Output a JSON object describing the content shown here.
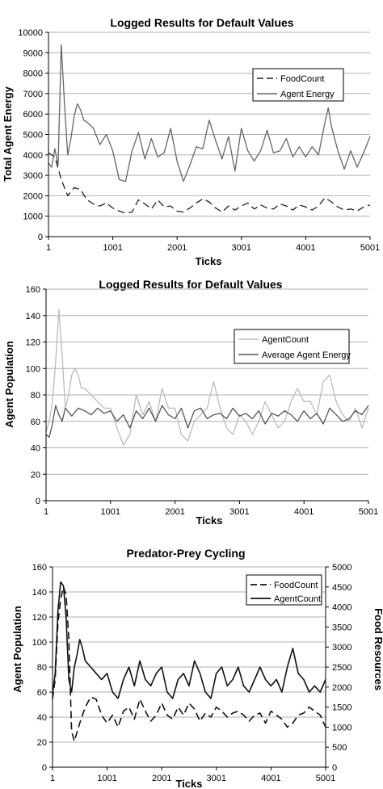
{
  "chart_data": [
    {
      "type": "line",
      "title": "Logged Results for Default Values",
      "xlabel": "Ticks",
      "ylabel": "Total Agent Energy",
      "x_ticks": [
        "1",
        "1001",
        "2001",
        "3001",
        "4001",
        "5001"
      ],
      "xlim": [
        1,
        5001
      ],
      "ylim": [
        0,
        10000
      ],
      "y_ticks": [
        "0",
        "1000",
        "2000",
        "3000",
        "4000",
        "5000",
        "6000",
        "7000",
        "8000",
        "9000",
        "10000"
      ],
      "grid": true,
      "legend_position": "top-right",
      "colors": {
        "FoodCount": "#222222",
        "Agent Energy": "#666666"
      },
      "series": [
        {
          "name": "FoodCount",
          "style": "dashed",
          "x": [
            1,
            100,
            200,
            300,
            400,
            500,
            600,
            700,
            800,
            900,
            1000,
            1100,
            1200,
            1300,
            1400,
            1500,
            1600,
            1700,
            1800,
            1900,
            2000,
            2100,
            2200,
            2300,
            2400,
            2500,
            2600,
            2700,
            2800,
            2900,
            3000,
            3100,
            3200,
            3300,
            3400,
            3500,
            3600,
            3700,
            3800,
            3900,
            4000,
            4100,
            4200,
            4300,
            4400,
            4500,
            4600,
            4700,
            4800,
            4900,
            5001
          ],
          "y": [
            4100,
            3900,
            2800,
            2000,
            2400,
            2300,
            1800,
            1600,
            1500,
            1650,
            1400,
            1250,
            1150,
            1200,
            1800,
            1600,
            1350,
            1800,
            1450,
            1500,
            1250,
            1200,
            1400,
            1650,
            1850,
            1700,
            1400,
            1200,
            1500,
            1300,
            1500,
            1650,
            1350,
            1550,
            1400,
            1350,
            1600,
            1500,
            1300,
            1550,
            1450,
            1300,
            1500,
            1900,
            1700,
            1450,
            1300,
            1350,
            1250,
            1450,
            1550
          ]
        },
        {
          "name": "Agent Energy",
          "style": "solid",
          "x": [
            1,
            50,
            100,
            150,
            200,
            250,
            300,
            350,
            400,
            450,
            500,
            550,
            600,
            700,
            800,
            900,
            1000,
            1100,
            1200,
            1300,
            1400,
            1500,
            1600,
            1700,
            1800,
            1900,
            2000,
            2100,
            2200,
            2300,
            2400,
            2500,
            2600,
            2700,
            2800,
            2900,
            3000,
            3100,
            3200,
            3300,
            3400,
            3500,
            3600,
            3700,
            3800,
            3900,
            4000,
            4100,
            4200,
            4300,
            4350,
            4400,
            4500,
            4600,
            4700,
            4800,
            4900,
            5001
          ],
          "y": [
            3600,
            3400,
            4300,
            3500,
            9400,
            6500,
            4000,
            4800,
            5900,
            6500,
            6200,
            5700,
            5600,
            5300,
            4500,
            5000,
            4200,
            2800,
            2700,
            4200,
            5100,
            3800,
            4800,
            3900,
            4100,
            5300,
            3700,
            2700,
            3500,
            4400,
            4300,
            5700,
            4700,
            3800,
            4900,
            3200,
            5300,
            4200,
            3700,
            4200,
            5200,
            4100,
            4200,
            4800,
            3900,
            4400,
            3900,
            4400,
            4000,
            5600,
            6300,
            5400,
            4200,
            3300,
            4200,
            3400,
            4100,
            4900
          ]
        }
      ]
    },
    {
      "type": "line",
      "title": "Logged Results for Default Values",
      "xlabel": "Ticks",
      "ylabel": "Agent Population",
      "x_ticks": [
        "1",
        "1001",
        "2001",
        "3001",
        "4001",
        "5001"
      ],
      "xlim": [
        1,
        5001
      ],
      "ylim": [
        0,
        160
      ],
      "y_ticks": [
        "0",
        "20",
        "40",
        "60",
        "80",
        "100",
        "120",
        "140",
        "160"
      ],
      "grid": true,
      "legend_position": "top-right",
      "colors": {
        "AgentCount": "#bbbbbb",
        "Average Agent Energy": "#555555"
      },
      "series": [
        {
          "name": "AgentCount",
          "style": "solid",
          "x": [
            1,
            50,
            100,
            150,
            200,
            250,
            300,
            350,
            400,
            450,
            500,
            550,
            600,
            700,
            800,
            900,
            1000,
            1100,
            1200,
            1300,
            1400,
            1500,
            1600,
            1700,
            1800,
            1900,
            2000,
            2100,
            2200,
            2300,
            2400,
            2500,
            2600,
            2700,
            2800,
            2900,
            3000,
            3100,
            3200,
            3300,
            3400,
            3500,
            3600,
            3700,
            3800,
            3900,
            4000,
            4100,
            4200,
            4300,
            4400,
            4500,
            4600,
            4700,
            4800,
            4900,
            5001
          ],
          "y": [
            52,
            60,
            75,
            105,
            145,
            110,
            70,
            80,
            95,
            100,
            95,
            85,
            85,
            80,
            75,
            70,
            70,
            55,
            42,
            50,
            80,
            65,
            75,
            60,
            85,
            70,
            70,
            50,
            45,
            60,
            65,
            70,
            90,
            70,
            55,
            50,
            65,
            60,
            50,
            60,
            75,
            65,
            55,
            60,
            75,
            85,
            75,
            75,
            65,
            90,
            95,
            75,
            65,
            60,
            70,
            55,
            70
          ]
        },
        {
          "name": "Average Agent Energy",
          "style": "solid",
          "x": [
            1,
            50,
            100,
            150,
            200,
            250,
            300,
            400,
            500,
            600,
            700,
            800,
            900,
            1000,
            1100,
            1200,
            1300,
            1400,
            1500,
            1600,
            1700,
            1800,
            1900,
            2000,
            2100,
            2200,
            2300,
            2400,
            2500,
            2600,
            2700,
            2800,
            2900,
            3000,
            3100,
            3200,
            3300,
            3400,
            3500,
            3600,
            3700,
            3800,
            3900,
            4000,
            4100,
            4200,
            4300,
            4400,
            4500,
            4600,
            4700,
            4800,
            4900,
            5001
          ],
          "y": [
            50,
            48,
            58,
            72,
            65,
            60,
            70,
            64,
            70,
            68,
            65,
            70,
            66,
            68,
            60,
            65,
            55,
            68,
            62,
            70,
            60,
            72,
            65,
            62,
            70,
            55,
            68,
            70,
            62,
            65,
            66,
            62,
            70,
            64,
            66,
            62,
            68,
            58,
            66,
            64,
            68,
            65,
            60,
            68,
            62,
            66,
            58,
            70,
            65,
            60,
            62,
            68,
            65,
            72
          ]
        }
      ]
    },
    {
      "type": "line",
      "title": "Predator-Prey Cycling",
      "xlabel": "Ticks",
      "ylabel": "Agent Population",
      "y2label": "Food Resources",
      "x_ticks": [
        "1",
        "1001",
        "2001",
        "3001",
        "4001",
        "5001"
      ],
      "xlim": [
        1,
        5001
      ],
      "ylim": [
        0,
        160
      ],
      "y2lim": [
        0,
        5000
      ],
      "y_ticks": [
        "0",
        "20",
        "40",
        "60",
        "80",
        "100",
        "120",
        "140",
        "160"
      ],
      "y2_ticks": [
        "0",
        "500",
        "1000",
        "1500",
        "2000",
        "2500",
        "3000",
        "3500",
        "4000",
        "4500",
        "5000"
      ],
      "grid": true,
      "legend_position": "top-right",
      "colors": {
        "FoodCount": "#111111",
        "AgentCount": "#111111"
      },
      "series": [
        {
          "name": "FoodCount",
          "style": "dashed",
          "axis": "right",
          "x": [
            1,
            50,
            100,
            150,
            200,
            250,
            300,
            350,
            400,
            500,
            600,
            700,
            800,
            900,
            1000,
            1100,
            1200,
            1300,
            1400,
            1500,
            1600,
            1700,
            1800,
            1900,
            2000,
            2100,
            2200,
            2300,
            2400,
            2500,
            2600,
            2700,
            2800,
            2900,
            3000,
            3100,
            3200,
            3300,
            3400,
            3500,
            3600,
            3700,
            3800,
            3900,
            4000,
            4100,
            4200,
            4300,
            4400,
            4500,
            4600,
            4700,
            4800,
            4900,
            5001
          ],
          "y": [
            1700,
            2200,
            3600,
            4200,
            4500,
            4300,
            3200,
            900,
            650,
            1100,
            1500,
            1750,
            1700,
            1300,
            1100,
            1300,
            1000,
            1400,
            1500,
            1200,
            1700,
            1400,
            1150,
            1300,
            1600,
            1300,
            1200,
            1500,
            1300,
            1600,
            1450,
            1150,
            1350,
            1250,
            1500,
            1400,
            1250,
            1350,
            1400,
            1300,
            1150,
            1300,
            1350,
            1100,
            1400,
            1300,
            1200,
            1000,
            1100,
            1300,
            1350,
            1500,
            1400,
            1300,
            1000
          ]
        },
        {
          "name": "AgentCount",
          "style": "solid",
          "axis": "left",
          "x": [
            1,
            50,
            100,
            150,
            200,
            250,
            300,
            350,
            400,
            450,
            500,
            550,
            600,
            700,
            800,
            900,
            1000,
            1100,
            1200,
            1300,
            1400,
            1500,
            1600,
            1700,
            1800,
            1900,
            2000,
            2100,
            2200,
            2300,
            2400,
            2500,
            2600,
            2700,
            2800,
            2900,
            3000,
            3100,
            3200,
            3300,
            3400,
            3500,
            3600,
            3700,
            3800,
            3900,
            4000,
            4100,
            4200,
            4300,
            4400,
            4500,
            4600,
            4700,
            4800,
            4900,
            5001
          ],
          "y": [
            58,
            75,
            125,
            148,
            145,
            120,
            70,
            60,
            80,
            90,
            102,
            95,
            85,
            80,
            75,
            70,
            75,
            60,
            55,
            70,
            80,
            65,
            85,
            70,
            65,
            75,
            80,
            60,
            55,
            70,
            75,
            65,
            85,
            75,
            60,
            55,
            75,
            80,
            65,
            70,
            80,
            65,
            60,
            70,
            80,
            70,
            65,
            70,
            60,
            80,
            95,
            75,
            70,
            60,
            65,
            60,
            70
          ]
        }
      ]
    }
  ]
}
